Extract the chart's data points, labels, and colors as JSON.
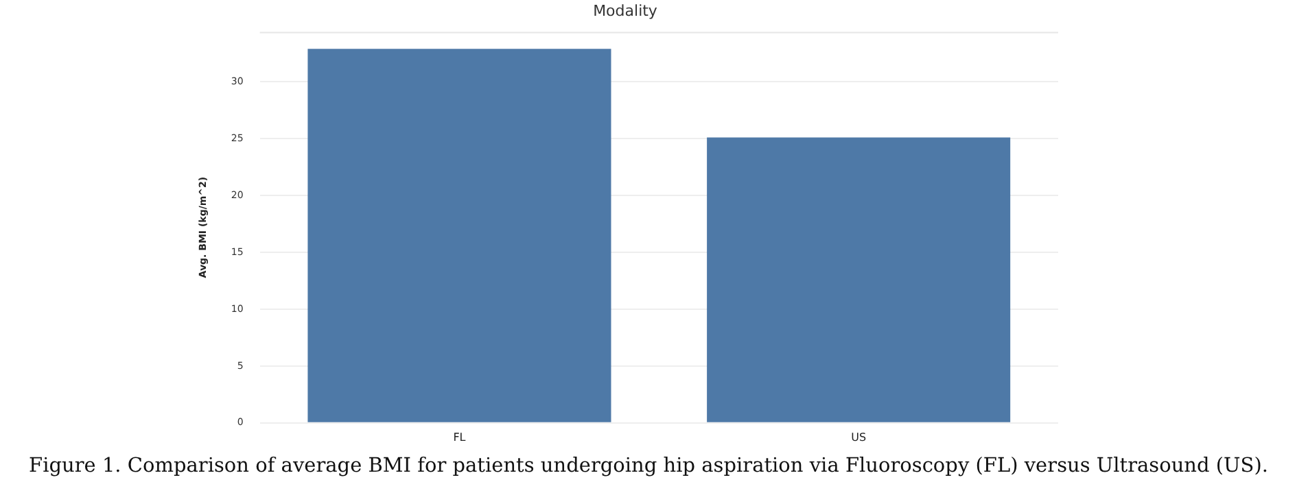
{
  "chart_data": {
    "type": "bar",
    "title": "Modality",
    "ylabel": "Avg. BMI (kg/m^2)",
    "categories": [
      "FL",
      "US"
    ],
    "values": [
      32.9,
      25.1
    ],
    "color": "#4e79a7",
    "ylim": [
      0,
      34.4
    ],
    "yticks": [
      0,
      5,
      10,
      15,
      20,
      25,
      30
    ],
    "grid": "y",
    "legend": false,
    "annotations": [
      "Figure 1. Comparison of average BMI for patients undergoing hip aspiration via Fluoroscopy (FL) versus Ultrasound (US)."
    ]
  }
}
